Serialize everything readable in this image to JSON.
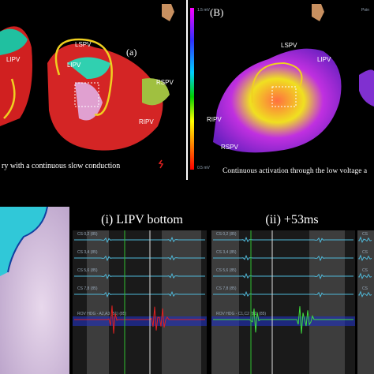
{
  "panel_a": {
    "labels": [
      "LIPV",
      "LSPV",
      "LIPV",
      "RSPV",
      "RIPV"
    ],
    "tag": "(a)",
    "caption": "ry with a continuous slow conduction"
  },
  "panel_b": {
    "tag": "(B)",
    "corner": "Poin",
    "scale_top": "1.5 mV",
    "scale_bottom": "0.5 mV",
    "labels": [
      "LSPV",
      "LIPV",
      "RIPV",
      "RSPV"
    ],
    "caption": "Continuous activation through the low voltage a"
  },
  "egm_i": {
    "title": "(i) LIPV bottom",
    "channels": [
      "CS 0,2 (85)",
      "CS 3,4 (85)",
      "CS 5,6 (85)",
      "CS 7,8 (85)",
      "ROV HDG - A2,A3 (B1) (85)"
    ]
  },
  "egm_ii": {
    "title": "(ii) +53ms",
    "channels": [
      "CS 0,2 (85)",
      "CS 3,4 (85)",
      "CS 5,6 (85)",
      "CS 7,8 (85)",
      "ROV HDG - C1,C2 (B1) (85)"
    ]
  },
  "egm_iii": {
    "channels": [
      "CS",
      "CS",
      "CS",
      "CS"
    ]
  }
}
